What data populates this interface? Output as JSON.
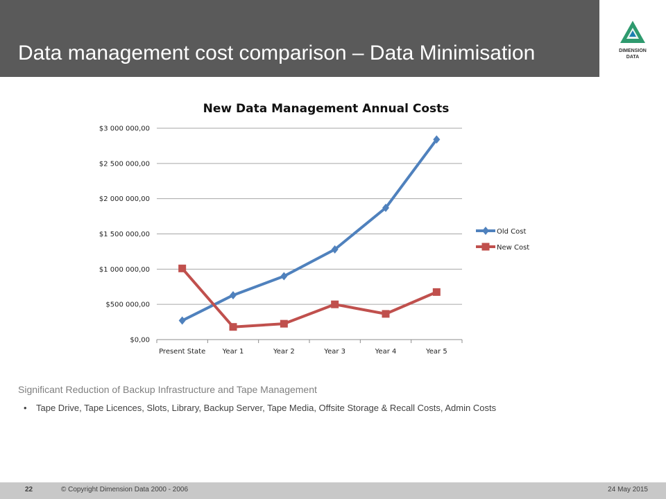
{
  "slide": {
    "title": "Data management cost comparison – Data Minimisation",
    "note": "Significant Reduction of Backup Infrastructure and Tape Management",
    "bullet": "Tape Drive, Tape Licences, Slots, Library, Backup Server, Tape Media, Offsite Storage & Recall Costs, Admin Costs",
    "bullet_glyph": "•"
  },
  "logo": {
    "line1": "DIMENSION",
    "line2": "DATA"
  },
  "footer": {
    "page": "22",
    "copyright": "© Copyright Dimension Data 2000 - 2006",
    "date": "24 May 2015",
    "background": "#c8c8c8"
  },
  "colors": {
    "header": "#5a5a5a",
    "old_cost": "#4f81bd",
    "new_cost": "#c0504d",
    "logo_green": "#2e9a6e"
  },
  "chart_data": {
    "type": "line",
    "title": "New Data Management Annual Costs",
    "categories": [
      "Present State",
      "Year 1",
      "Year 2",
      "Year 3",
      "Year 4",
      "Year 5"
    ],
    "series": [
      {
        "name": "Old Cost",
        "values": [
          270000,
          630000,
          900000,
          1280000,
          1870000,
          2840000
        ],
        "color": "#4f81bd",
        "marker": "diamond"
      },
      {
        "name": "New Cost",
        "values": [
          1010000,
          180000,
          225000,
          500000,
          365000,
          675000
        ],
        "color": "#c0504d",
        "marker": "square"
      }
    ],
    "y_ticks": [
      {
        "value": 0,
        "label": "$0,00"
      },
      {
        "value": 500000,
        "label": "$500 000,00"
      },
      {
        "value": 1000000,
        "label": "$1 000 000,00"
      },
      {
        "value": 1500000,
        "label": "$1 500 000,00"
      },
      {
        "value": 2000000,
        "label": "$2 000 000,00"
      },
      {
        "value": 2500000,
        "label": "$2 500 000,00"
      },
      {
        "value": 3000000,
        "label": "$3 000 000,00"
      }
    ],
    "ylim": [
      0,
      3000000
    ],
    "grid": true,
    "legend": "right"
  }
}
